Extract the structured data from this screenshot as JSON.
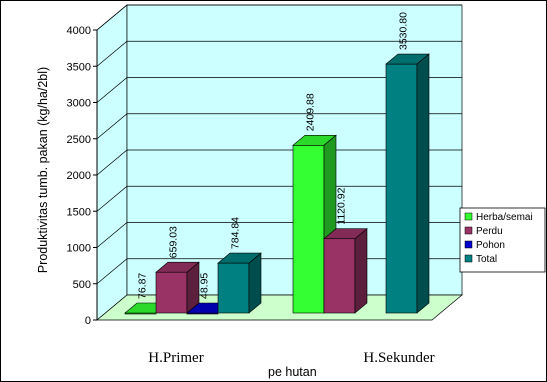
{
  "chart_data": {
    "type": "bar",
    "ylabel": "Produktivitas tumb. pakan (kg/ha/2bl)",
    "xlabel": "pe hutan",
    "categories": [
      "H.Primer",
      "H.Sekunder"
    ],
    "series": [
      {
        "name": "Herba/semai",
        "values": [
          76.87,
          2409.88
        ],
        "color": "#33ff33",
        "labels": [
          "76.87",
          "2409.88"
        ]
      },
      {
        "name": "Perdu",
        "values": [
          659.03,
          1120.92
        ],
        "color": "#993366",
        "labels": [
          "659.03",
          "1120.92"
        ]
      },
      {
        "name": "Pohon",
        "values": [
          48.95,
          null
        ],
        "color": "#0000cc",
        "labels": [
          "48.95",
          ""
        ]
      },
      {
        "name": "Total",
        "values": [
          784.84,
          3530.8
        ],
        "color": "#008080",
        "labels": [
          "784.84",
          "3530.80"
        ]
      }
    ],
    "yticks": [
      "0",
      "500",
      "1000",
      "1500",
      "2000",
      "2500",
      "3000",
      "3500",
      "4000"
    ],
    "ylim": [
      0,
      4000
    ],
    "grid": true,
    "legend_position": "right",
    "wall_color": "#ccffff",
    "floor_color": "#ccffcc"
  }
}
